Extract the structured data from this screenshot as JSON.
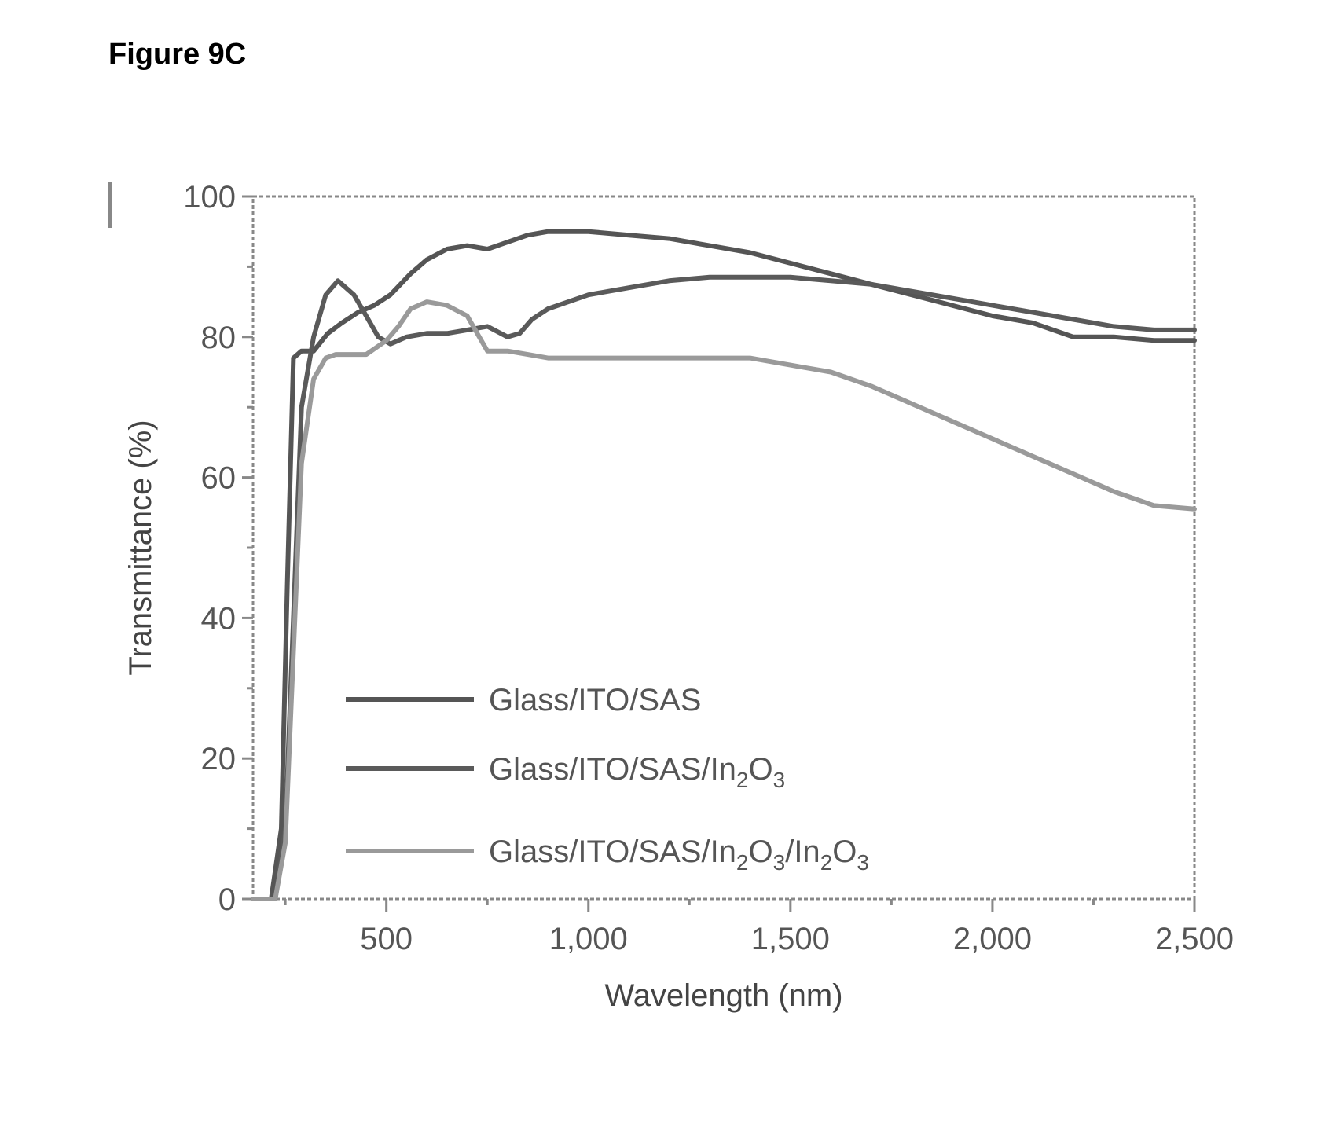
{
  "figure_label": "Figure 9C",
  "chart_data": {
    "type": "line",
    "title": "",
    "xlabel": "Wavelength (nm)",
    "ylabel": "Transmittance (%)",
    "xlim": [
      170,
      2500
    ],
    "ylim": [
      0,
      100
    ],
    "x_ticks": [
      500,
      1000,
      1500,
      2000,
      2500
    ],
    "x_tick_labels": [
      "500",
      "1,000",
      "1,500",
      "2,000",
      "2,500"
    ],
    "y_ticks": [
      0,
      20,
      40,
      60,
      80,
      100
    ],
    "y_tick_labels": [
      "0",
      "20",
      "40",
      "60",
      "80",
      "100"
    ],
    "grid": false,
    "legend_position": "lower-center",
    "series": [
      {
        "name": "Glass/ITO/SAS",
        "color": "#555555",
        "legend_parts": [
          [
            "Glass/ITO/SAS",
            "n"
          ]
        ],
        "x": [
          170,
          215,
          240,
          255,
          270,
          290,
          320,
          355,
          390,
          430,
          470,
          510,
          560,
          600,
          650,
          700,
          750,
          800,
          850,
          900,
          950,
          1000,
          1100,
          1200,
          1300,
          1400,
          1500,
          1600,
          1700,
          1800,
          1900,
          2000,
          2100,
          2200,
          2300,
          2400,
          2500
        ],
        "y": [
          0,
          0,
          10,
          45,
          77,
          78,
          78,
          80.5,
          82,
          83.5,
          84.5,
          86,
          89,
          91,
          92.5,
          93,
          92.5,
          93.5,
          94.5,
          95,
          95,
          95,
          94.5,
          94,
          93,
          92,
          90.5,
          89,
          87.5,
          86,
          84.5,
          83,
          82,
          80,
          80,
          79.5,
          79.5
        ]
      },
      {
        "name": "Glass/ITO/SAS/In₂O₃",
        "color": "#5a5a5a",
        "legend_parts": [
          [
            "Glass/ITO/SAS/In",
            "n"
          ],
          [
            "2",
            "sub"
          ],
          [
            "O",
            "n"
          ],
          [
            "3",
            "sub"
          ]
        ],
        "x": [
          170,
          225,
          250,
          270,
          290,
          320,
          350,
          380,
          420,
          450,
          480,
          510,
          550,
          600,
          650,
          700,
          750,
          800,
          830,
          860,
          900,
          1000,
          1100,
          1200,
          1300,
          1400,
          1500,
          1600,
          1700,
          1800,
          1900,
          2000,
          2100,
          2200,
          2300,
          2400,
          2500
        ],
        "y": [
          0,
          0,
          10,
          40,
          70,
          80,
          86,
          88,
          86,
          83,
          80,
          79,
          80,
          80.5,
          80.5,
          81,
          81.5,
          80,
          80.5,
          82.5,
          84,
          86,
          87,
          88,
          88.5,
          88.5,
          88.5,
          88,
          87.5,
          86.5,
          85.5,
          84.5,
          83.5,
          82.5,
          81.5,
          81,
          81
        ]
      },
      {
        "name": "Glass/ITO/SAS/In₂O₃/In₂O₃",
        "color": "#9a9a9a",
        "legend_parts": [
          [
            "Glass/ITO/SAS/In",
            "n"
          ],
          [
            "2",
            "sub"
          ],
          [
            "O",
            "n"
          ],
          [
            "3",
            "sub"
          ],
          [
            "/In",
            "n"
          ],
          [
            "2",
            "sub"
          ],
          [
            "O",
            "n"
          ],
          [
            "3",
            "sub"
          ]
        ],
        "x": [
          170,
          225,
          250,
          270,
          290,
          320,
          350,
          375,
          400,
          450,
          500,
          530,
          560,
          600,
          650,
          700,
          750,
          800,
          850,
          900,
          1000,
          1100,
          1200,
          1300,
          1400,
          1500,
          1600,
          1700,
          1800,
          1900,
          2000,
          2100,
          2200,
          2300,
          2400,
          2500
        ],
        "y": [
          0,
          0,
          8,
          35,
          62,
          74,
          77,
          77.5,
          77.5,
          77.5,
          79.5,
          81.5,
          84,
          85,
          84.5,
          83,
          78,
          78,
          77.5,
          77,
          77,
          77,
          77,
          77,
          77,
          76,
          75,
          73,
          70.5,
          68,
          65.5,
          63,
          60.5,
          58,
          56,
          55.5
        ]
      }
    ]
  }
}
